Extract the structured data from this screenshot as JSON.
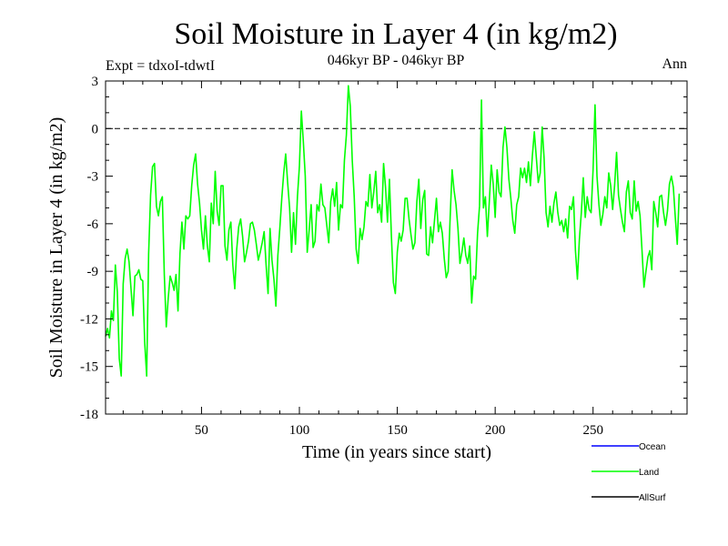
{
  "header": {
    "title": "Soil Moisture in Layer 4 (in kg/m2)",
    "subtitle": "046kyr BP - 046kyr BP",
    "expt": "Expt = tdxoI-tdwtI",
    "period": "Ann"
  },
  "chart_data": {
    "type": "line",
    "title": "Soil Moisture in Layer 4 (in kg/m2)",
    "xlabel": "Time (in years since start)",
    "ylabel": "Soil Moisture in Layer 4 (in kg/m2)",
    "xlim": [
      1,
      298
    ],
    "ylim": [
      -18,
      3
    ],
    "xticks": [
      50,
      100,
      150,
      200,
      250
    ],
    "yticks": [
      3,
      0,
      -3,
      -6,
      -9,
      -12,
      -15,
      -18
    ],
    "reference_line": 0,
    "legend_position": "bottom-right",
    "legend": [
      {
        "name": "Ocean",
        "color": "#0000ff"
      },
      {
        "name": "Land",
        "color": "#00ff00"
      },
      {
        "name": "AllSurf",
        "color": "#000000"
      }
    ],
    "series": [
      {
        "name": "Land",
        "color": "#00ff00",
        "x_start": 1,
        "x_step": 1,
        "values": [
          -13.1,
          -12.6,
          -13.2,
          -11.5,
          -12.1,
          -8.6,
          -10.3,
          -14.5,
          -15.6,
          -9.8,
          -8.2,
          -7.6,
          -8.4,
          -10.1,
          -11.8,
          -9.3,
          -9.2,
          -8.9,
          -9.5,
          -9.6,
          -13.5,
          -15.6,
          -7.9,
          -4.2,
          -2.4,
          -2.2,
          -4.9,
          -5.5,
          -4.6,
          -4.3,
          -9.2,
          -12.5,
          -10.7,
          -9.3,
          -9.7,
          -10.2,
          -9.2,
          -11.5,
          -7.9,
          -5.9,
          -7.6,
          -5.5,
          -5.7,
          -5.5,
          -3.6,
          -2.3,
          -1.6,
          -3.5,
          -4.7,
          -6.4,
          -7.6,
          -5.5,
          -7.4,
          -8.4,
          -4.7,
          -6.0,
          -2.7,
          -5.2,
          -6.1,
          -3.6,
          -3.6,
          -7.4,
          -8.3,
          -6.4,
          -5.9,
          -8.6,
          -10.1,
          -7.6,
          -6.2,
          -5.7,
          -6.8,
          -8.4,
          -7.8,
          -7.1,
          -6.0,
          -5.9,
          -6.4,
          -7.3,
          -8.3,
          -7.8,
          -7.2,
          -6.5,
          -8.6,
          -10.4,
          -6.3,
          -8.3,
          -9.5,
          -11.2,
          -8.0,
          -6.3,
          -4.4,
          -2.8,
          -1.6,
          -3.4,
          -5.0,
          -7.8,
          -5.3,
          -7.3,
          -4.3,
          -2.4,
          1.1,
          -0.8,
          -3.0,
          -7.8,
          -6.4,
          -4.8,
          -7.5,
          -7.1,
          -4.8,
          -5.2,
          -3.5,
          -4.8,
          -5.0,
          -6.1,
          -7.2,
          -4.6,
          -3.8,
          -4.9,
          -3.4,
          -6.4,
          -4.8,
          -5.0,
          -2.0,
          -0.4,
          2.7,
          1.4,
          -2.0,
          -4.3,
          -7.6,
          -8.5,
          -6.3,
          -7.0,
          -6.2,
          -4.6,
          -4.9,
          -2.9,
          -5.0,
          -4.0,
          -2.7,
          -5.3,
          -4.8,
          -5.9,
          -2.2,
          -3.7,
          -5.9,
          -3.2,
          -6.8,
          -9.7,
          -10.4,
          -7.8,
          -6.6,
          -7.1,
          -6.4,
          -4.4,
          -4.4,
          -5.7,
          -6.7,
          -7.6,
          -7.2,
          -4.6,
          -3.2,
          -6.3,
          -4.5,
          -3.9,
          -7.9,
          -8.0,
          -6.2,
          -7.2,
          -5.8,
          -4.4,
          -6.5,
          -5.9,
          -6.6,
          -8.2,
          -9.4,
          -9.0,
          -5.6,
          -2.6,
          -3.9,
          -4.8,
          -6.3,
          -8.5,
          -7.8,
          -6.9,
          -8.0,
          -8.5,
          -7.4,
          -11.0,
          -9.3,
          -9.5,
          -6.6,
          -4.9,
          1.8,
          -5.0,
          -4.3,
          -6.8,
          -4.6,
          -2.3,
          -3.5,
          -5.6,
          -2.6,
          -4.0,
          -4.3,
          -1.2,
          0.1,
          -1.2,
          -3.2,
          -4.4,
          -5.8,
          -6.6,
          -4.8,
          -4.3,
          -2.5,
          -3.1,
          -2.5,
          -3.4,
          -2.1,
          -3.6,
          -1.7,
          -0.2,
          -1.8,
          -3.4,
          -2.8,
          0.1,
          -1.9,
          -5.3,
          -6.2,
          -4.9,
          -5.9,
          -4.7,
          -4.0,
          -5.3,
          -6.1,
          -5.8,
          -6.5,
          -5.7,
          -6.9,
          -4.9,
          -5.1,
          -4.3,
          -7.7,
          -9.5,
          -7.0,
          -5.3,
          -3.1,
          -5.6,
          -4.3,
          -5.1,
          -5.3,
          -2.6,
          1.5,
          -3.0,
          -4.8,
          -6.1,
          -5.4,
          -4.3,
          -5.0,
          -2.8,
          -3.6,
          -5.1,
          -3.6,
          -1.5,
          -4.2,
          -5.1,
          -5.9,
          -6.5,
          -4.0,
          -3.3,
          -5.3,
          -5.7,
          -3.3,
          -5.2,
          -4.6,
          -5.5,
          -7.7,
          -10.0,
          -9.0,
          -8.1,
          -7.7,
          -8.9,
          -4.6,
          -5.3,
          -6.2,
          -4.3,
          -4.2,
          -5.3,
          -6.1,
          -5.2,
          -3.5,
          -3.0,
          -3.7,
          -5.6,
          -7.3,
          -4.1
        ]
      }
    ]
  }
}
